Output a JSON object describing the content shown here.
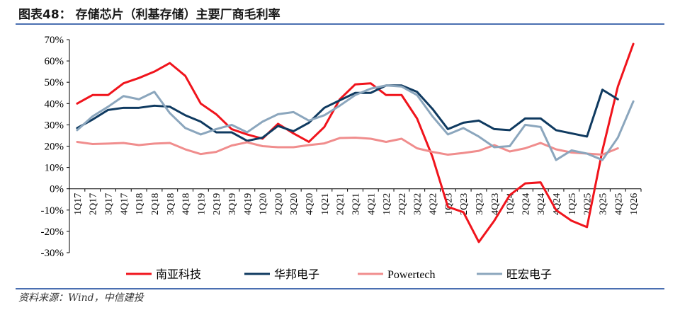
{
  "header": {
    "title": "图表48：    存储芯片（利基存储）主要厂商毛利率"
  },
  "footer": {
    "source": "资料来源：Wind，中信建投"
  },
  "chart_data": {
    "type": "line",
    "title": "",
    "xlabel": "",
    "ylabel": "",
    "ylim": [
      -30,
      70
    ],
    "yticks": [
      70,
      60,
      50,
      40,
      30,
      20,
      10,
      0,
      -10,
      -20,
      -30
    ],
    "ytick_labels": [
      "70%",
      "60%",
      "50%",
      "40%",
      "30%",
      "20%",
      "10%",
      "0%",
      "-10%",
      "-20%",
      "-30%"
    ],
    "grid": false,
    "legend_position": "bottom",
    "categories": [
      "1Q17",
      "2Q17",
      "3Q17",
      "4Q17",
      "1Q18",
      "2Q18",
      "3Q18",
      "4Q18",
      "1Q19",
      "2Q19",
      "3Q19",
      "4Q19",
      "1Q20",
      "2Q20",
      "3Q20",
      "4Q20",
      "1Q21",
      "2Q21",
      "3Q21",
      "4Q21",
      "1Q22",
      "2Q22",
      "3Q22",
      "4Q22",
      "1Q23",
      "2Q23",
      "3Q23",
      "4Q23",
      "1Q24",
      "2Q24",
      "3Q24",
      "4Q24",
      "1Q25",
      "2Q25",
      "3Q25",
      "4Q25",
      "1Q26"
    ],
    "series": [
      {
        "name": "南亚科技",
        "color": "#f0141c",
        "values": [
          40,
          44,
          44,
          49.5,
          52,
          55,
          59,
          53,
          40,
          35,
          28,
          25.5,
          23.5,
          30.5,
          26,
          22,
          29,
          42,
          49,
          49.5,
          44,
          44,
          33,
          15,
          -8.5,
          -11,
          -25,
          -15,
          -3,
          2.5,
          3,
          -10,
          -15,
          -18,
          18,
          48,
          68
        ]
      },
      {
        "name": "华邦电子",
        "color": "#0f3a60",
        "values": [
          28.5,
          32.5,
          37,
          38,
          38,
          39,
          38.5,
          34.5,
          31.5,
          26.5,
          26.5,
          22.5,
          24,
          29.5,
          27,
          31,
          38,
          41.5,
          45,
          45,
          48.5,
          48.5,
          45.5,
          37.5,
          28,
          31,
          32,
          28,
          27.5,
          33,
          33,
          27.5,
          26,
          24.5,
          46.5,
          42,
          null
        ]
      },
      {
        "name": "Powertech",
        "color": "#f08d8d",
        "values": [
          22,
          21,
          21.2,
          21.5,
          20.5,
          21.2,
          21.5,
          18.5,
          16.3,
          17.3,
          20.3,
          21.8,
          20,
          19.5,
          19.5,
          20.5,
          21.3,
          23.8,
          24,
          23.5,
          22,
          23.5,
          19,
          17.3,
          16,
          16.8,
          17.8,
          20.5,
          17.5,
          19,
          21.5,
          18.5,
          17,
          16.5,
          16,
          19,
          null
        ]
      },
      {
        "name": "旺宏电子",
        "color": "#8ba6bd",
        "values": [
          27.5,
          34,
          38.5,
          43.5,
          42,
          45.5,
          35.5,
          28.5,
          25.5,
          28,
          30,
          26.5,
          31.5,
          35,
          36,
          32,
          34.5,
          39,
          44,
          47,
          48.5,
          48,
          44,
          34,
          25.5,
          28.5,
          24.5,
          19.5,
          20,
          30,
          29,
          13.5,
          18,
          16.5,
          13.5,
          24,
          41
        ]
      }
    ]
  }
}
